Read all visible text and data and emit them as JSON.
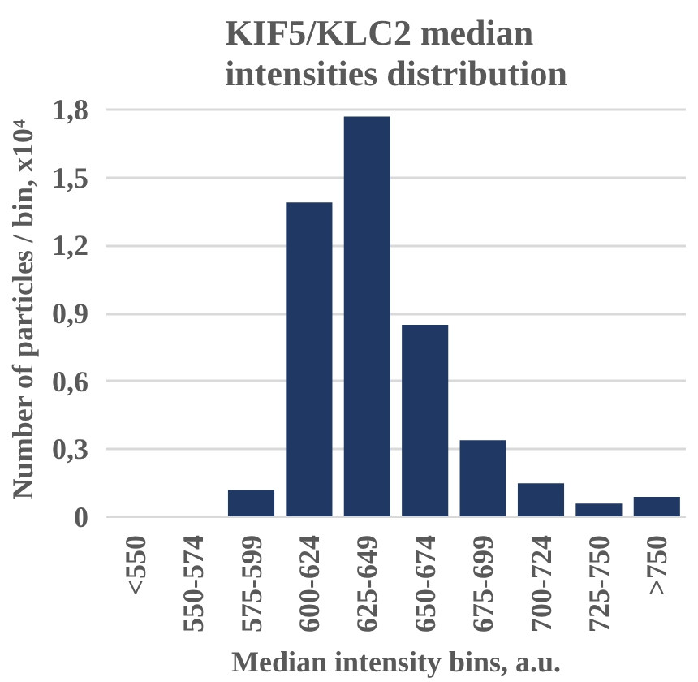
{
  "chart_data": {
    "type": "bar",
    "title": "KIF5/KLC2 median intensities distribution",
    "xlabel": "Median intensity bins, a.u.",
    "ylabel": "Number of particles / bin, x10⁴",
    "categories": [
      "<550",
      "550-574",
      "575-599",
      "600-624",
      "625-649",
      "650-674",
      "675-699",
      "700-724",
      "725-750",
      ">750"
    ],
    "values": [
      0,
      0,
      0.12,
      1.39,
      1.77,
      0.85,
      0.34,
      0.15,
      0.06,
      0.09
    ],
    "color": "#203864",
    "ylim": [
      0,
      1.8
    ],
    "yticks": [
      {
        "value": 0,
        "label": "0"
      },
      {
        "value": 0.3,
        "label": "0,3"
      },
      {
        "value": 0.6,
        "label": "0,6"
      },
      {
        "value": 0.9,
        "label": "0,9"
      },
      {
        "value": 1.2,
        "label": "1,2"
      },
      {
        "value": 1.5,
        "label": "1,5"
      },
      {
        "value": 1.8,
        "label": "1,8"
      }
    ],
    "grid": "y"
  }
}
